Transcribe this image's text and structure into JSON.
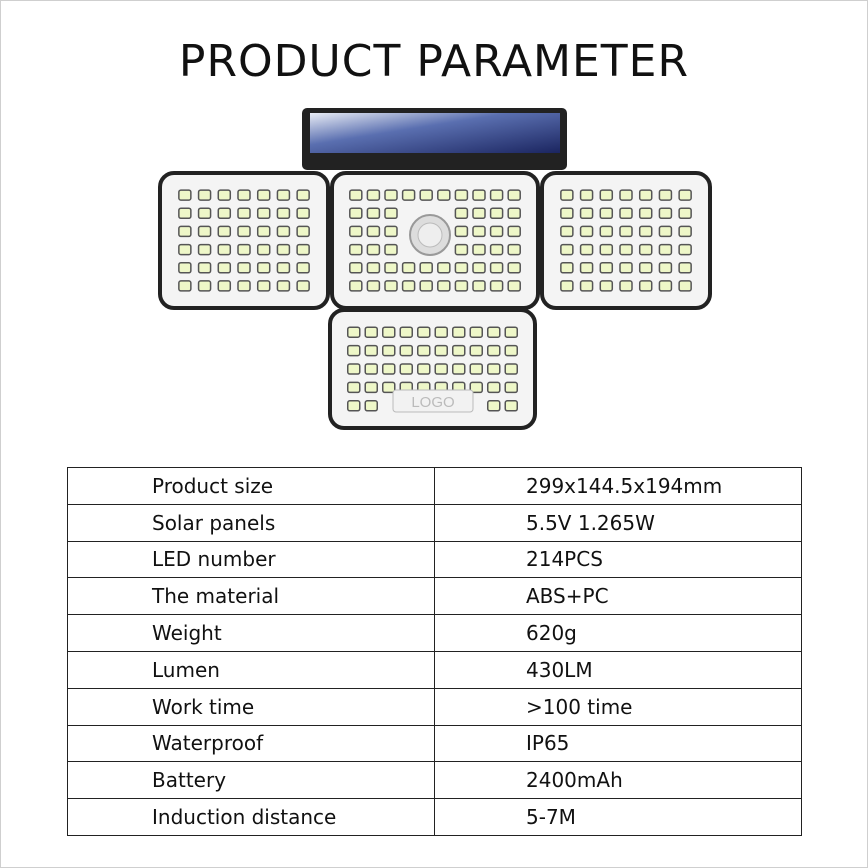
{
  "title": "PRODUCT PARAMETER",
  "product_image": {
    "logo_text": "LOGO"
  },
  "specs": [
    {
      "label": "Product size",
      "value": "299x144.5x194mm"
    },
    {
      "label": "Solar panels",
      "value": "5.5V 1.265W"
    },
    {
      "label": "LED number",
      "value": "214PCS"
    },
    {
      "label": "The material",
      "value": "ABS+PC"
    },
    {
      "label": "Weight",
      "value": "620g"
    },
    {
      "label": "Lumen",
      "value": "430LM"
    },
    {
      "label": "Work time",
      "value": ">100 time"
    },
    {
      "label": "Waterproof",
      "value": "IP65"
    },
    {
      "label": "Battery",
      "value": "2400mAh"
    },
    {
      "label": "Induction distance",
      "value": "5-7M"
    }
  ]
}
